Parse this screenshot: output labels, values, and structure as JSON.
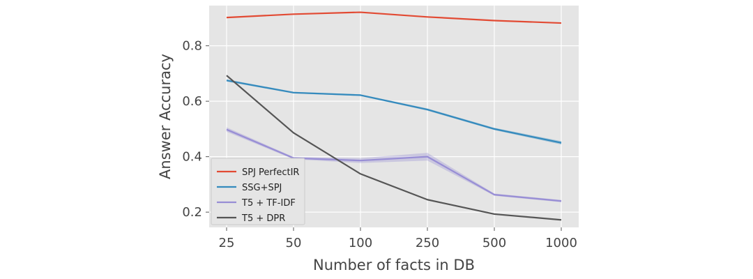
{
  "chart_data": {
    "type": "line",
    "title": "",
    "xlabel": "Number of facts in DB",
    "ylabel": "Answer Accuracy",
    "categories": [
      "25",
      "50",
      "100",
      "250",
      "500",
      "1000"
    ],
    "ylim": [
      0.145,
      0.945
    ],
    "yticks": [
      0.2,
      0.4,
      0.6,
      0.8
    ],
    "ytick_labels": [
      "0.2",
      "0.4",
      "0.6",
      "0.8"
    ],
    "grid": true,
    "legend_position": "lower-left",
    "background": "#e5e5e5",
    "grid_color": "#ffffff",
    "series": [
      {
        "name": "SPJ PerfectIR",
        "color": "#e24a33",
        "values": [
          0.902,
          0.914,
          0.921,
          0.904,
          0.891,
          0.882
        ]
      },
      {
        "name": "SSG+SPJ",
        "color": "#348abd",
        "values": [
          0.675,
          0.631,
          0.622,
          0.57,
          0.5,
          0.45
        ],
        "band": [
          0.004,
          0.003,
          0.003,
          0.004,
          0.004,
          0.006
        ]
      },
      {
        "name": "T5 + TF-IDF",
        "color": "#988ed5",
        "values": [
          0.498,
          0.395,
          0.386,
          0.4,
          0.263,
          0.24
        ],
        "band": [
          0.008,
          0.004,
          0.009,
          0.014,
          0.004,
          0.004
        ]
      },
      {
        "name": "T5 + DPR",
        "color": "#555555",
        "values": [
          0.693,
          0.486,
          0.338,
          0.245,
          0.193,
          0.172
        ]
      }
    ]
  }
}
